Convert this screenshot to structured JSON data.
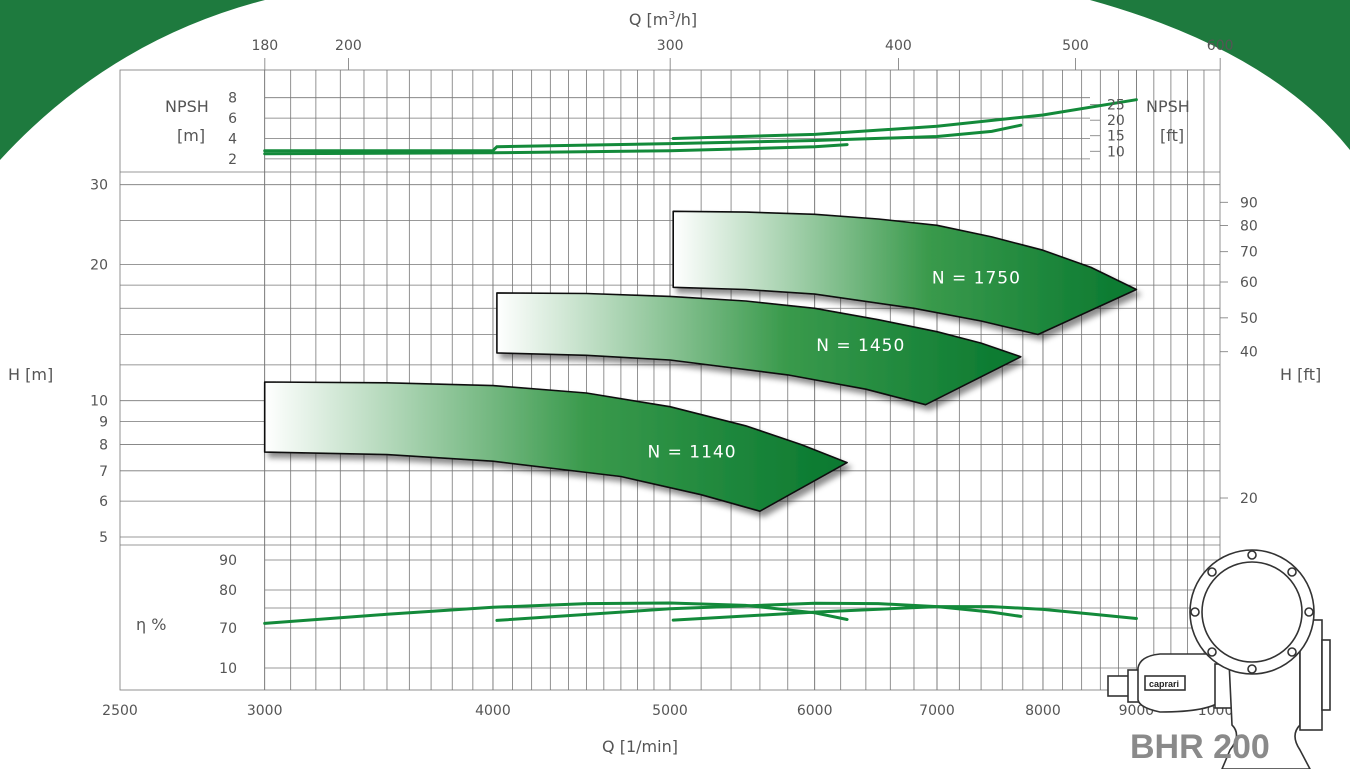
{
  "chart_data": {
    "type": "line",
    "title": "",
    "colors": {
      "curve": "#138a3a",
      "band_dark": "#0a7a32",
      "background": "#ffffff",
      "grid": "#777777",
      "corner": "#1e7a3e"
    },
    "x_axis_bottom": {
      "label": "Q [1/min]",
      "scale": "log",
      "range": [
        2500,
        10000
      ],
      "ticks": [
        2500,
        3000,
        4000,
        5000,
        6000,
        7000,
        8000,
        9000,
        10000
      ]
    },
    "x_axis_top": {
      "label": "Q [m³/h]",
      "label_base": "Q [m",
      "label_sup": "3",
      "label_tail": "/h]",
      "ticks": [
        180,
        200,
        300,
        400,
        500,
        600
      ]
    },
    "h_axis_left": {
      "label": "H [m]",
      "scale": "log",
      "range": [
        4.8,
        32
      ],
      "ticks": [
        5,
        6,
        7,
        8,
        9,
        10,
        20,
        30
      ]
    },
    "h_axis_right": {
      "label": "H [ft]",
      "ticks": [
        20,
        40,
        50,
        60,
        70,
        80,
        90
      ]
    },
    "npsh_axis_left": {
      "label_line1": "NPSH",
      "label_line2": "[m]",
      "ticks": [
        2,
        4,
        6,
        8
      ]
    },
    "npsh_axis_right": {
      "label_line1": "NPSH",
      "label_line2": "[ft]",
      "ticks": [
        10,
        15,
        20,
        25
      ]
    },
    "efficiency_axis": {
      "label": "η %",
      "ticks": [
        10,
        70,
        80,
        90
      ]
    },
    "head_bands": [
      {
        "name": "N = 1140",
        "label": "N = 1140",
        "x_start": 3000,
        "x_end": 6250,
        "upper": [
          [
            3000,
            11.0
          ],
          [
            3500,
            10.95
          ],
          [
            4000,
            10.8
          ],
          [
            4500,
            10.4
          ],
          [
            5000,
            9.7
          ],
          [
            5500,
            8.8
          ],
          [
            5900,
            8.0
          ],
          [
            6250,
            7.3
          ]
        ],
        "lower": [
          [
            6250,
            7.3
          ],
          [
            5600,
            5.7
          ],
          [
            5200,
            6.2
          ],
          [
            4700,
            6.8
          ],
          [
            4000,
            7.35
          ],
          [
            3500,
            7.6
          ],
          [
            3000,
            7.7
          ]
        ]
      },
      {
        "name": "N = 1450",
        "label": "N = 1450",
        "x_start": 4020,
        "x_end": 7780,
        "upper": [
          [
            4020,
            17.3
          ],
          [
            4500,
            17.25
          ],
          [
            5000,
            17.0
          ],
          [
            5500,
            16.6
          ],
          [
            6000,
            16.0
          ],
          [
            6500,
            15.1
          ],
          [
            7000,
            14.2
          ],
          [
            7400,
            13.4
          ],
          [
            7780,
            12.5
          ]
        ],
        "lower": [
          [
            7780,
            12.5
          ],
          [
            6900,
            9.8
          ],
          [
            6400,
            10.6
          ],
          [
            5800,
            11.4
          ],
          [
            5000,
            12.3
          ],
          [
            4500,
            12.6
          ],
          [
            4020,
            12.75
          ]
        ]
      },
      {
        "name": "N = 1750",
        "label": "N = 1750",
        "x_start": 5020,
        "x_end": 9000,
        "upper": [
          [
            5020,
            26.2
          ],
          [
            5500,
            26.1
          ],
          [
            6000,
            25.8
          ],
          [
            6500,
            25.2
          ],
          [
            7000,
            24.4
          ],
          [
            7500,
            23.0
          ],
          [
            8000,
            21.5
          ],
          [
            8500,
            19.7
          ],
          [
            9000,
            17.6
          ]
        ],
        "lower": [
          [
            9000,
            17.6
          ],
          [
            7950,
            14.0
          ],
          [
            7400,
            15.0
          ],
          [
            6800,
            16.0
          ],
          [
            6000,
            17.2
          ],
          [
            5500,
            17.6
          ],
          [
            5020,
            17.8
          ]
        ]
      }
    ],
    "npsh_curves": [
      {
        "name": "",
        "points": [
          [
            3000,
            2.5
          ],
          [
            4000,
            2.6
          ],
          [
            5000,
            2.8
          ],
          [
            5500,
            3.0
          ],
          [
            6000,
            3.2
          ],
          [
            6250,
            3.4
          ]
        ]
      },
      {
        "name": "",
        "points": [
          [
            3000,
            2.8
          ],
          [
            4000,
            2.8
          ],
          [
            4020,
            3.2
          ],
          [
            5000,
            3.5
          ],
          [
            6000,
            3.8
          ],
          [
            7000,
            4.2
          ],
          [
            7500,
            4.7
          ],
          [
            7780,
            5.3
          ]
        ]
      },
      {
        "name": "",
        "points": [
          [
            5020,
            4.0
          ],
          [
            6000,
            4.4
          ],
          [
            7000,
            5.2
          ],
          [
            8000,
            6.3
          ],
          [
            9000,
            7.8
          ]
        ]
      }
    ],
    "efficiency_curves": [
      {
        "name": "",
        "points": [
          [
            3000,
            71.5
          ],
          [
            3500,
            74.5
          ],
          [
            4000,
            76.8
          ],
          [
            4500,
            78.0
          ],
          [
            5000,
            78.2
          ],
          [
            5500,
            77.4
          ],
          [
            6000,
            75.0
          ],
          [
            6250,
            72.8
          ]
        ]
      },
      {
        "name": "",
        "points": [
          [
            4020,
            72.5
          ],
          [
            5000,
            76.3
          ],
          [
            6000,
            78.1
          ],
          [
            6500,
            78.0
          ],
          [
            7000,
            77.0
          ],
          [
            7500,
            75.2
          ],
          [
            7780,
            73.8
          ]
        ]
      },
      {
        "name": "",
        "points": [
          [
            5020,
            72.6
          ],
          [
            6000,
            75.2
          ],
          [
            7000,
            77.0
          ],
          [
            7500,
            77.0
          ],
          [
            8000,
            76.1
          ],
          [
            8500,
            74.6
          ],
          [
            9000,
            73.1
          ]
        ]
      }
    ]
  },
  "branding": {
    "model": "BHR 200",
    "brand": "caprari"
  }
}
